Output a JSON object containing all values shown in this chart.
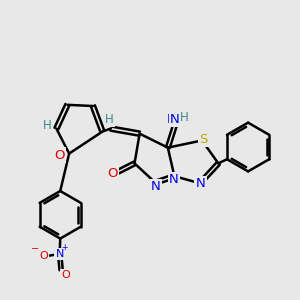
{
  "bg_color": "#e8e8e8",
  "bond_color": "#000000",
  "bond_lw": 1.8,
  "atom_colors": {
    "N": "#0000ee",
    "O": "#dd0000",
    "S": "#bbaa00",
    "H_teal": "#3a8a8a",
    "C": "#000000"
  },
  "xlim": [
    0,
    10
  ],
  "ylim": [
    0,
    10
  ]
}
